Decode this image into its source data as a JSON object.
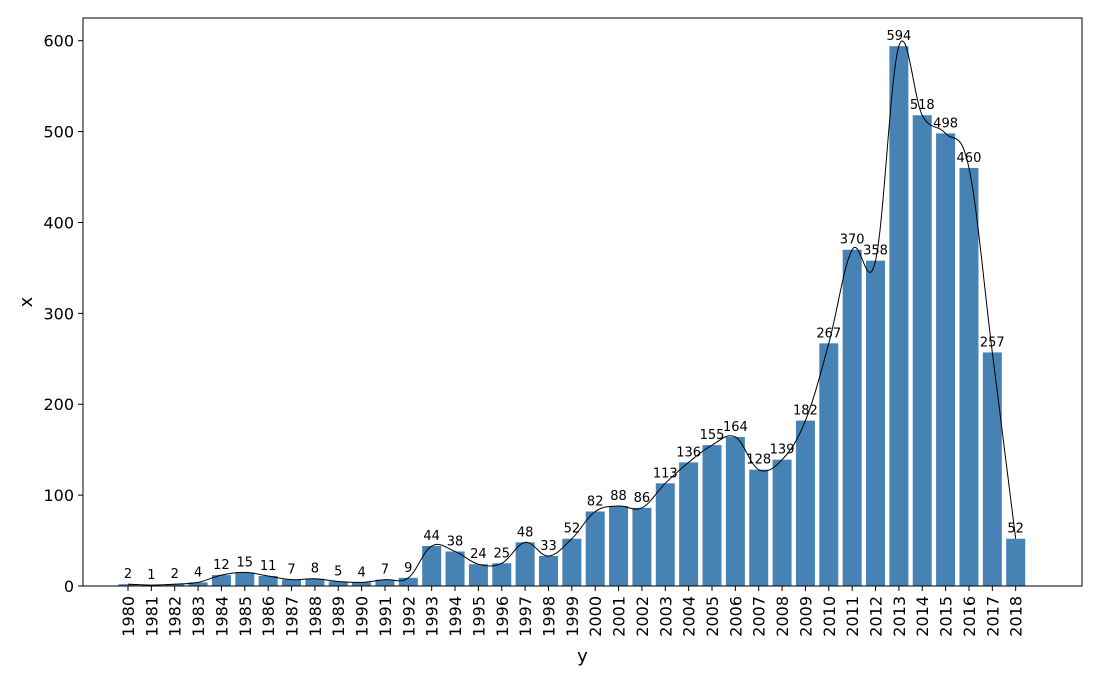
{
  "chart_data": {
    "type": "bar",
    "xlabel": "y",
    "ylabel": "x",
    "ylim": [
      0,
      625
    ],
    "yticks": [
      0,
      100,
      200,
      300,
      400,
      500,
      600
    ],
    "grid": false,
    "bar_color": "#4682b4",
    "line_color": "#000000",
    "categories": [
      "1980",
      "1981",
      "1982",
      "1983",
      "1984",
      "1985",
      "1986",
      "1987",
      "1988",
      "1989",
      "1990",
      "1991",
      "1992",
      "1993",
      "1994",
      "1995",
      "1996",
      "1997",
      "1998",
      "1999",
      "2000",
      "2001",
      "2002",
      "2003",
      "2004",
      "2005",
      "2006",
      "2007",
      "2008",
      "2009",
      "2010",
      "2011",
      "2012",
      "2013",
      "2014",
      "2015",
      "2016",
      "2017",
      "2018"
    ],
    "values": [
      2,
      1,
      2,
      4,
      12,
      15,
      11,
      7,
      8,
      5,
      4,
      7,
      9,
      44,
      38,
      24,
      25,
      48,
      33,
      52,
      82,
      88,
      86,
      113,
      136,
      155,
      164,
      128,
      139,
      182,
      267,
      370,
      358,
      594,
      518,
      498,
      460,
      257,
      52
    ],
    "series": [
      {
        "type": "bar",
        "values_ref": "values"
      },
      {
        "type": "line",
        "smooth": true,
        "values_ref": "values"
      }
    ]
  }
}
